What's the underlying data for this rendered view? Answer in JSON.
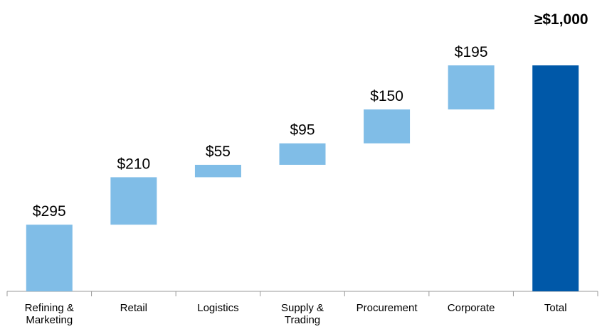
{
  "chart_data": {
    "type": "waterfall",
    "categories": [
      "Refining & Marketing",
      "Retail",
      "Logistics",
      "Supply & Trading",
      "Procurement",
      "Corporate",
      "Total"
    ],
    "values": [
      295,
      210,
      55,
      95,
      150,
      195,
      1000
    ],
    "value_labels": [
      "$295",
      "$210",
      "$55",
      "$95",
      "$150",
      "$195",
      "≥$1,000"
    ],
    "colors": [
      "#80bde7",
      "#80bde7",
      "#80bde7",
      "#80bde7",
      "#80bde7",
      "#80bde7",
      "#0058a8"
    ]
  }
}
